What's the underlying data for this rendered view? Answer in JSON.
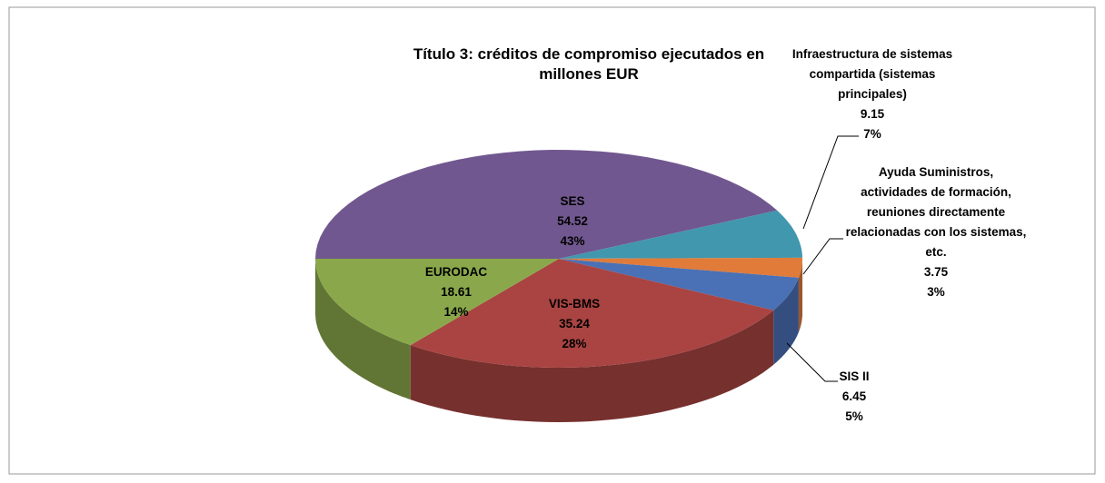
{
  "chart_data": {
    "type": "pie3d",
    "title": "Título 3: créditos de compromiso ejecutados en millones EUR",
    "categories": [
      "SES",
      "Infraestructura de sistemas compartida (sistemas principales)",
      "Ayuda Suministros, actividades de formación, reuniones directamente relacionadas con los sistemas, etc.",
      "SIS II",
      "VIS-BMS",
      "EURODAC"
    ],
    "values": [
      54.52,
      9.15,
      3.75,
      6.45,
      35.24,
      18.61
    ],
    "percent_labels": [
      "43%",
      "7%",
      "3%",
      "5%",
      "28%",
      "14%"
    ],
    "colors": [
      "#71578f",
      "#4197ae",
      "#e07b39",
      "#4a70b5",
      "#a94442",
      "#8aa84b"
    ]
  }
}
